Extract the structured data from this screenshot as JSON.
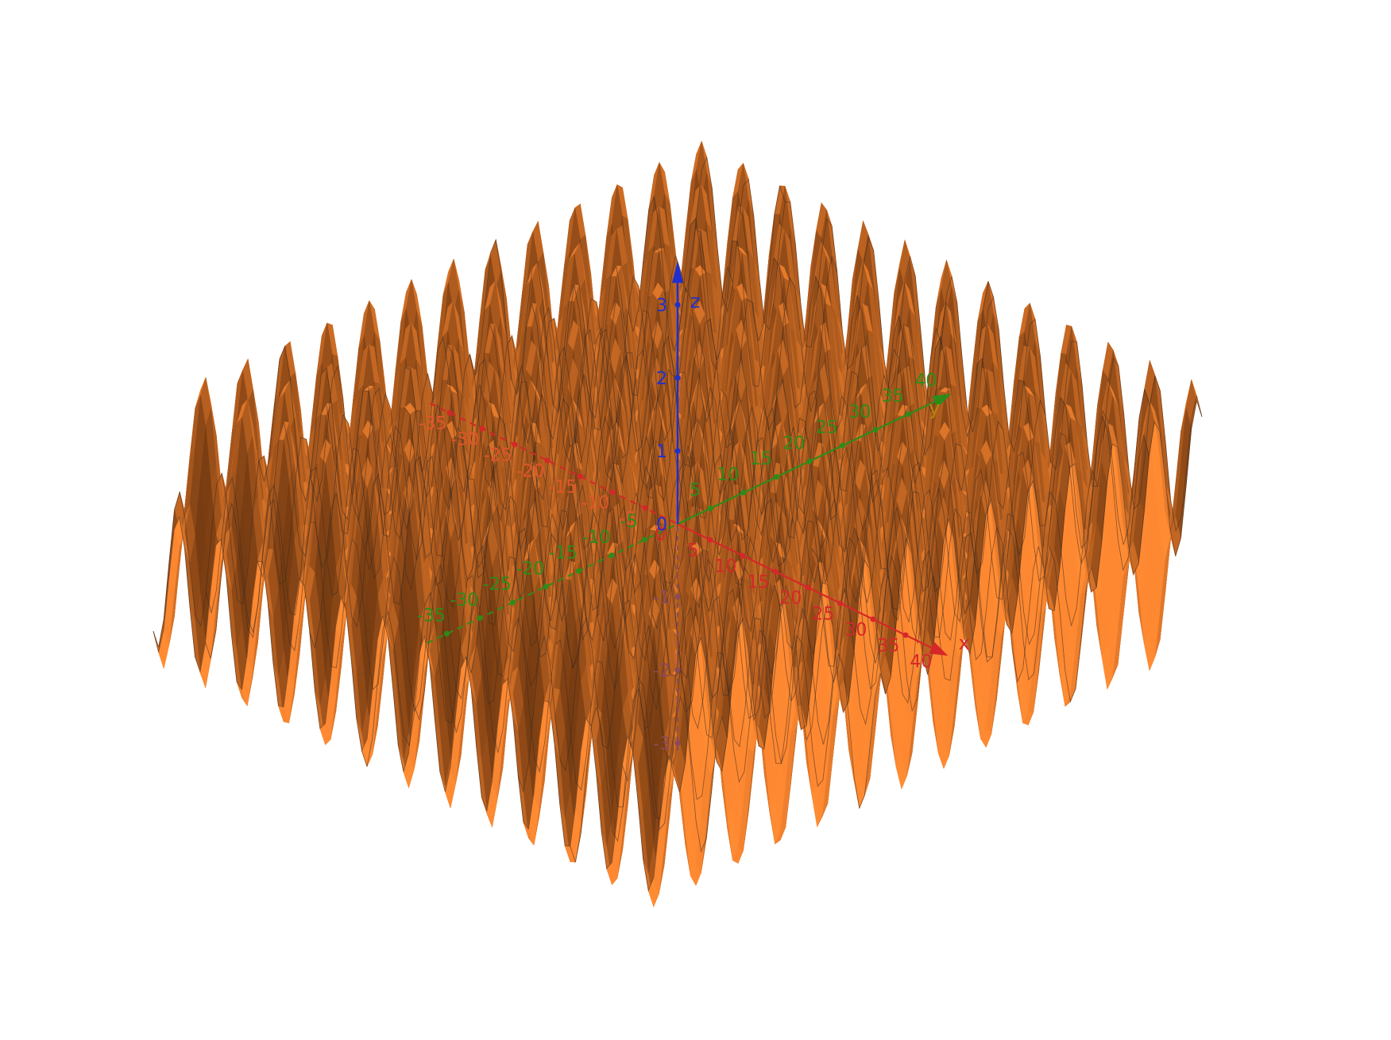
{
  "chart_data": {
    "type": "surface3d",
    "surface_expression": "z = sin(x) + sin(y)",
    "domain": {
      "x": [
        -40,
        40
      ],
      "y": [
        -40,
        40
      ]
    },
    "axes": {
      "x": {
        "name": "x",
        "color": "#d62728",
        "ticks": [
          -35,
          -30,
          -25,
          -20,
          -15,
          -10,
          -5,
          0,
          5,
          10,
          15,
          20,
          25,
          30,
          35,
          40
        ]
      },
      "y": {
        "name": "y",
        "color": "#2e8b1a",
        "ticks": [
          -35,
          -30,
          -25,
          -20,
          -15,
          -10,
          -5,
          5,
          10,
          15,
          20,
          25,
          30,
          35,
          40
        ]
      },
      "z": {
        "name": "z",
        "color": "#1f2fd0",
        "ticks": [
          -3,
          -2,
          -1,
          0,
          1,
          2,
          3
        ],
        "range": [
          -3,
          3
        ]
      }
    },
    "surface_color": "#d2691e",
    "grid": false,
    "legend": "none"
  }
}
